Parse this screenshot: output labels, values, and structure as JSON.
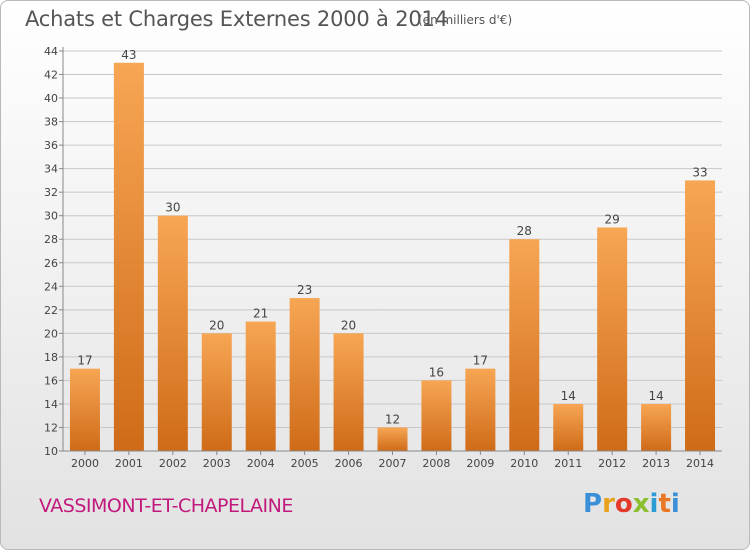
{
  "header": {
    "title": "Achats et Charges Externes 2000 à 2014",
    "unit": "(en milliers d'€)"
  },
  "commune": "VASSIMONT-ET-CHAPELAINE",
  "logo": {
    "letters": [
      "P",
      "r",
      "o",
      "x",
      "i",
      "t",
      "i"
    ]
  },
  "colors": {
    "bar_light": "#f7a654",
    "bar_dark": "#cf6b18",
    "label": "#444444",
    "grid": "#c8c8c8"
  },
  "chart_data": {
    "type": "bar",
    "title": "Achats et Charges Externes 2000 à 2014",
    "xlabel": "",
    "ylabel": "(en milliers d'€)",
    "categories": [
      "2000",
      "2001",
      "2002",
      "2003",
      "2004",
      "2005",
      "2006",
      "2007",
      "2008",
      "2009",
      "2010",
      "2011",
      "2012",
      "2013",
      "2014"
    ],
    "values": [
      17,
      43,
      30,
      20,
      21,
      23,
      20,
      12,
      16,
      17,
      28,
      14,
      29,
      14,
      33
    ],
    "ylim": [
      10,
      44
    ],
    "yticks": [
      10,
      12,
      14,
      16,
      18,
      20,
      22,
      24,
      26,
      28,
      30,
      32,
      34,
      36,
      38,
      40,
      42,
      44
    ],
    "grid": true
  }
}
